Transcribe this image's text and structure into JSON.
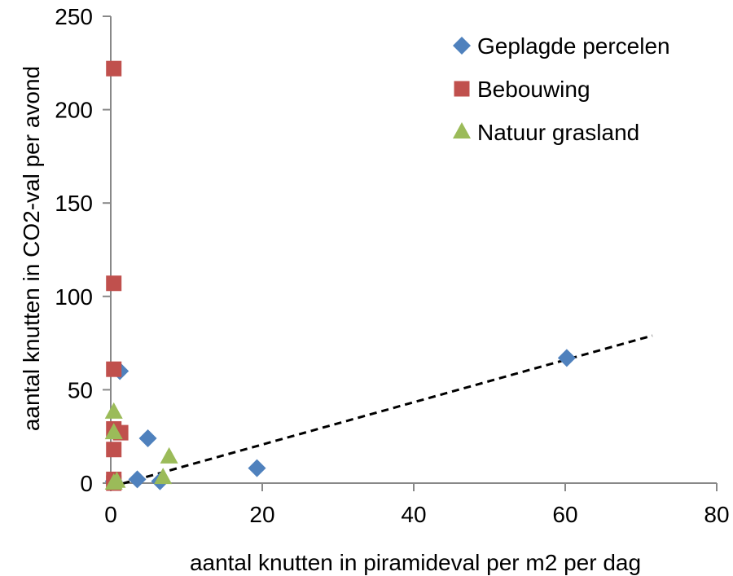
{
  "chart_data": {
    "type": "scatter",
    "title": "",
    "xlabel": "aantal knutten in piramideval per m2 per dag",
    "ylabel": "aantal knutten in CO2-val per avond",
    "xlim": [
      0,
      80
    ],
    "ylim": [
      0,
      250
    ],
    "xticks": [
      0,
      20,
      40,
      60,
      80
    ],
    "yticks": [
      0,
      50,
      100,
      150,
      200,
      250
    ],
    "grid": false,
    "legend_position": "top-right",
    "series": [
      {
        "name": "Geplagde percelen",
        "marker": "diamond",
        "color": "#4F81BD",
        "points": [
          {
            "x": 1.2,
            "y": 60
          },
          {
            "x": 4.9,
            "y": 24
          },
          {
            "x": 3.5,
            "y": 2
          },
          {
            "x": 6.5,
            "y": 1
          },
          {
            "x": 19.3,
            "y": 8
          },
          {
            "x": 60.2,
            "y": 67
          },
          {
            "x": 0.4,
            "y": 1
          }
        ]
      },
      {
        "name": "Bebouwing",
        "marker": "square",
        "color": "#C0504D",
        "points": [
          {
            "x": 0.4,
            "y": 222
          },
          {
            "x": 0.4,
            "y": 107
          },
          {
            "x": 0.4,
            "y": 61
          },
          {
            "x": 0.4,
            "y": 29
          },
          {
            "x": 1.3,
            "y": 27
          },
          {
            "x": 0.4,
            "y": 18
          },
          {
            "x": 0.4,
            "y": 2
          },
          {
            "x": 0.4,
            "y": 0
          }
        ]
      },
      {
        "name": "Natuur grasland",
        "marker": "triangle",
        "color": "#9BBB59",
        "points": [
          {
            "x": 0.4,
            "y": 38
          },
          {
            "x": 0.4,
            "y": 27
          },
          {
            "x": 7.7,
            "y": 14
          },
          {
            "x": 6.9,
            "y": 3
          },
          {
            "x": 0.8,
            "y": 1
          },
          {
            "x": 0.4,
            "y": 0
          }
        ]
      }
    ],
    "trendline": {
      "style": "dashed",
      "color": "#000000",
      "from": {
        "x": 0,
        "y": -2
      },
      "to": {
        "x": 71.5,
        "y": 79
      }
    }
  }
}
